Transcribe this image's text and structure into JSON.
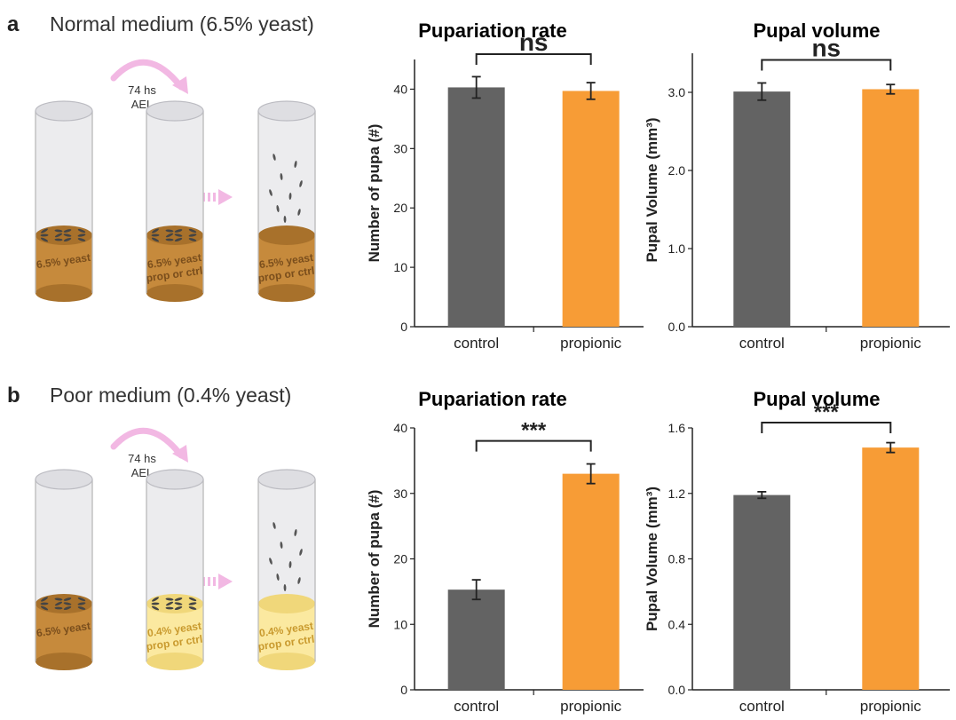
{
  "panels": [
    {
      "letter": "a",
      "title": "Normal medium (6.5% yeast)",
      "arrow_label": [
        "74 hs",
        "AEL"
      ],
      "tubes": [
        {
          "food_color": "#c68a3c",
          "food_dark": "#a8712b",
          "food_label": [
            "6.5% yeast"
          ],
          "larvae": true
        },
        {
          "food_color": "#c68a3c",
          "food_dark": "#a8712b",
          "food_label": [
            "6.5% yeast",
            "prop or ctrl"
          ],
          "larvae": true
        },
        {
          "food_color": "#c68a3c",
          "food_dark": "#a8712b",
          "food_label": [
            "6.5% yeast",
            "prop or ctrl"
          ],
          "larvae": false,
          "pupae": true
        }
      ]
    },
    {
      "letter": "b",
      "title": "Poor medium (0.4% yeast)",
      "arrow_label": [
        "74 hs",
        "AEL"
      ],
      "tubes": [
        {
          "food_color": "#c68a3c",
          "food_dark": "#a8712b",
          "food_label": [
            "6.5% yeast"
          ],
          "larvae": true
        },
        {
          "food_color": "#fbe9a0",
          "food_dark": "#f0d77a",
          "food_label": [
            "0.4% yeast",
            "prop or ctrl"
          ],
          "larvae": true
        },
        {
          "food_color": "#fbe9a0",
          "food_dark": "#f0d77a",
          "food_label": [
            "0.4% yeast",
            "prop or ctrl"
          ],
          "larvae": false,
          "pupae": true
        }
      ]
    }
  ],
  "colors": {
    "control": "#636363",
    "propionic": "#f79c36",
    "arrow": "#f2b8e3"
  },
  "chart_data": [
    {
      "id": "a-pupariation",
      "type": "bar",
      "title": "Pupariation rate",
      "ylabel": "Number of pupa (#)",
      "categories": [
        "control",
        "propionic"
      ],
      "values": [
        40.3,
        39.7
      ],
      "errors": [
        1.8,
        1.4
      ],
      "ylim": [
        0,
        45
      ],
      "yticks": [
        0,
        10,
        20,
        30,
        40
      ],
      "ytick_labels": [
        "0",
        "10",
        "20",
        "30",
        "40"
      ],
      "significance": "ns"
    },
    {
      "id": "a-volume",
      "type": "bar",
      "title": "Pupal volume",
      "ylabel": "Pupal Volume (mm³)",
      "categories": [
        "control",
        "propionic"
      ],
      "values": [
        3.01,
        3.04
      ],
      "errors": [
        0.11,
        0.06
      ],
      "ylim": [
        0,
        3.5
      ],
      "yticks": [
        0,
        1,
        2,
        3
      ],
      "ytick_labels": [
        "0.0",
        "1.0",
        "2.0",
        "3.0"
      ],
      "significance": "ns"
    },
    {
      "id": "b-pupariation",
      "type": "bar",
      "title": "Pupariation rate",
      "ylabel": "Number of pupa (#)",
      "categories": [
        "control",
        "propionic"
      ],
      "values": [
        15.3,
        33.0
      ],
      "errors": [
        1.5,
        1.5
      ],
      "ylim": [
        0,
        40
      ],
      "yticks": [
        0,
        10,
        20,
        30,
        40
      ],
      "ytick_labels": [
        "0",
        "10",
        "20",
        "30",
        "40"
      ],
      "significance": "***"
    },
    {
      "id": "b-volume",
      "type": "bar",
      "title": "Pupal volume",
      "ylabel": "Pupal Volume (mm³)",
      "categories": [
        "control",
        "propionic"
      ],
      "values": [
        1.19,
        1.48
      ],
      "errors": [
        0.02,
        0.03
      ],
      "ylim": [
        0,
        1.6
      ],
      "yticks": [
        0,
        0.4,
        0.8,
        1.2,
        1.6
      ],
      "ytick_labels": [
        "0.0",
        "0.4",
        "0.8",
        "1.2",
        "1.6"
      ],
      "significance": "***"
    }
  ]
}
